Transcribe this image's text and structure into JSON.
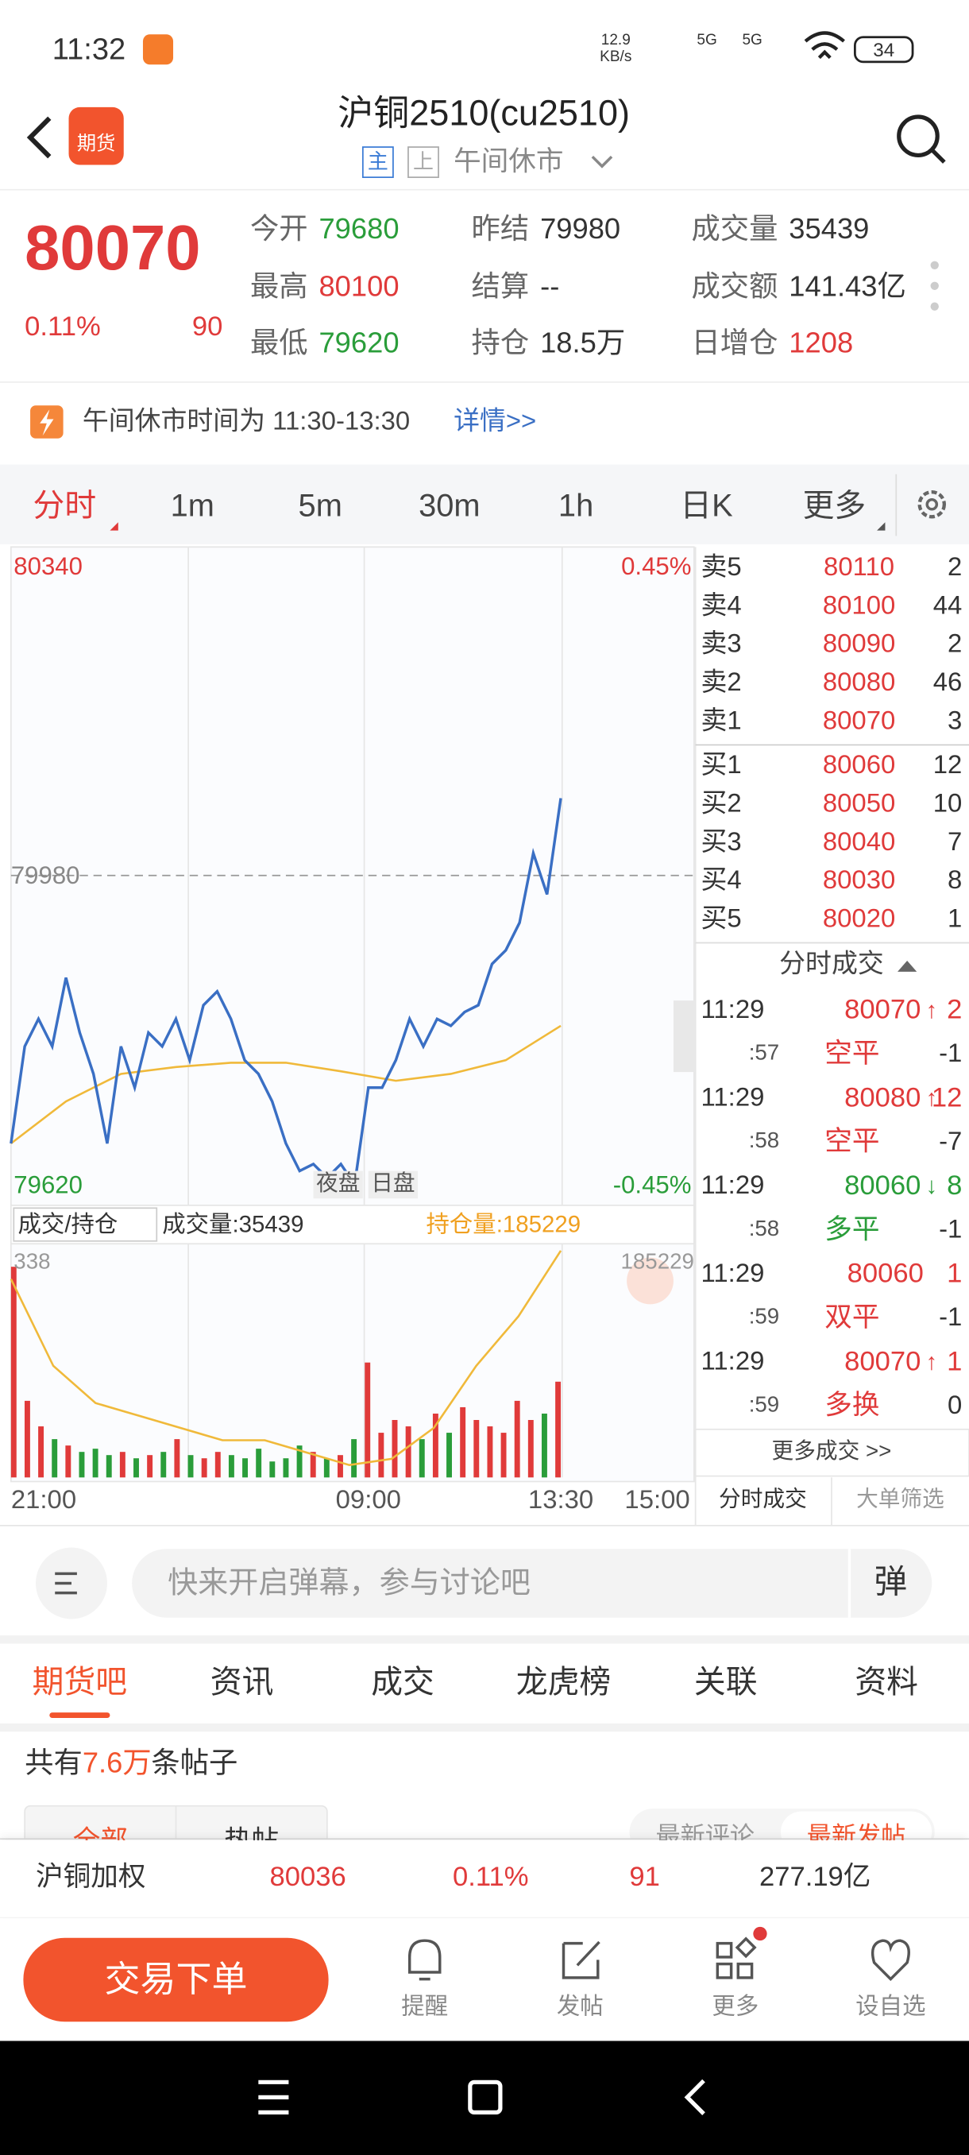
{
  "status_bar": {
    "time": "11:32",
    "net_speed": "12.9",
    "net_unit": "KB/s",
    "signal_1": "5G",
    "signal_2": "5G",
    "battery": "34"
  },
  "header": {
    "badge": "期货",
    "title": "沪铜2510(cu2510)",
    "tags": [
      "主",
      "上"
    ],
    "status": "午间休市"
  },
  "quote": {
    "price": "80070",
    "change_pct": "0.11%",
    "change": "90",
    "stats": [
      {
        "label": "今开",
        "value": "79680",
        "color": "#2a9d3a"
      },
      {
        "label": "昨结",
        "value": "79980",
        "color": "#333333"
      },
      {
        "label": "成交量",
        "value": "35439",
        "color": "#333333"
      },
      {
        "label": "最高",
        "value": "80100",
        "color": "#e03a3a"
      },
      {
        "label": "结算",
        "value": "--",
        "color": "#333333"
      },
      {
        "label": "成交额",
        "value": "141.43亿",
        "color": "#333333"
      },
      {
        "label": "最低",
        "value": "79620",
        "color": "#2a9d3a"
      },
      {
        "label": "持仓",
        "value": "18.5万",
        "color": "#333333"
      },
      {
        "label": "日增仓",
        "value": "1208",
        "color": "#e03a3a"
      }
    ]
  },
  "notice": {
    "text": "午间休市时间为 11:30-13:30",
    "link": "详情>>"
  },
  "period_tabs": {
    "items": [
      "分时",
      "1m",
      "5m",
      "30m",
      "1h",
      "日K",
      "更多"
    ],
    "active": 0
  },
  "chart": {
    "type": "line",
    "y_top": "80340",
    "y_mid": "79980",
    "y_bottom": "79620",
    "pct_top": "0.45%",
    "pct_bottom": "-0.45%",
    "session_labels": [
      "夜盘",
      "日盘"
    ],
    "price": {
      "color": "#3a6fc4",
      "values": [
        79668,
        79781,
        79813,
        79781,
        79861,
        79797,
        79749,
        79668,
        79781,
        79733,
        79797,
        79781,
        79813,
        79765,
        79829,
        79845,
        79813,
        79765,
        79749,
        79717,
        79668,
        79636,
        79644,
        79628,
        79644,
        79620,
        79733,
        79733,
        79765,
        79813,
        79781,
        79813,
        79805,
        79821,
        79829,
        79877,
        79893,
        79925,
        80006,
        79958,
        80070
      ]
    },
    "average": {
      "color": "#f0b93a",
      "values": [
        79668,
        79717,
        79749,
        79757,
        79762,
        79762,
        79752,
        79741,
        79749,
        79765,
        79805
      ]
    },
    "x_labels": [
      "21:00",
      "09:00",
      "13:30",
      "15:00"
    ],
    "volume_panel": {
      "selector": "成交/持仓",
      "volume": "成交量:35439",
      "open_interest": "持仓量:185229",
      "volume_max": "338",
      "oi_max": "185229",
      "volume_values": [
        330,
        120,
        80,
        60,
        50,
        40,
        45,
        35,
        40,
        30,
        35,
        40,
        60,
        35,
        30,
        40,
        35,
        30,
        45,
        25,
        30,
        50,
        40,
        30,
        35,
        60,
        180,
        70,
        90,
        80,
        60,
        100,
        70,
        110,
        90,
        80,
        70,
        120,
        90,
        100,
        150
      ],
      "oi_values": [
        185000,
        184300,
        184000,
        183900,
        183800,
        183700,
        183700,
        183600,
        183500,
        183550,
        183800,
        184300,
        184700,
        185229
      ],
      "oi_ylim": [
        183400,
        185229
      ],
      "oi_color": "#f0b93a"
    }
  },
  "order_book": {
    "asks": [
      {
        "label": "卖5",
        "price": "80110",
        "qty": "2"
      },
      {
        "label": "卖4",
        "price": "80100",
        "qty": "44"
      },
      {
        "label": "卖3",
        "price": "80090",
        "qty": "2"
      },
      {
        "label": "卖2",
        "price": "80080",
        "qty": "46"
      },
      {
        "label": "卖1",
        "price": "80070",
        "qty": "3"
      }
    ],
    "bids": [
      {
        "label": "买1",
        "price": "80060",
        "qty": "12"
      },
      {
        "label": "买2",
        "price": "80050",
        "qty": "10"
      },
      {
        "label": "买3",
        "price": "80040",
        "qty": "7"
      },
      {
        "label": "买4",
        "price": "80030",
        "qty": "8"
      },
      {
        "label": "买5",
        "price": "80020",
        "qty": "1"
      }
    ]
  },
  "trades": {
    "title": "分时成交",
    "rows": [
      {
        "time": "11:29",
        "second": ":57",
        "price": "80070",
        "arrow": "↑",
        "qty": "2",
        "kind": "空平",
        "oi_change": "-1",
        "color": "#e03a3a"
      },
      {
        "time": "11:29",
        "second": ":58",
        "price": "80080",
        "arrow": "↑",
        "qty": "12",
        "kind": "空平",
        "oi_change": "-7",
        "color": "#e03a3a"
      },
      {
        "time": "11:29",
        "second": ":58",
        "price": "80060",
        "arrow": "↓",
        "qty": "8",
        "kind": "多平",
        "oi_change": "-1",
        "color": "#2a9d3a"
      },
      {
        "time": "11:29",
        "second": ":59",
        "price": "80060",
        "qty": "1",
        "kind": "双平",
        "oi_change": "-1",
        "color": "#e03a3a"
      },
      {
        "time": "11:29",
        "second": ":59",
        "price": "80070",
        "arrow": "↑",
        "qty": "1",
        "kind": "多换",
        "oi_change": "0",
        "color": "#e03a3a"
      }
    ],
    "more": "更多成交 >>",
    "tabs": [
      "分时成交",
      "大单筛选"
    ]
  },
  "comment_bar": {
    "placeholder": "快来开启弹幕，参与讨论吧",
    "button": "弹"
  },
  "section_tabs": {
    "items": [
      "期货吧",
      "资讯",
      "成交",
      "龙虎榜",
      "关联",
      "资料"
    ],
    "active": 0
  },
  "posts": {
    "prefix": "共有",
    "count": "7.6万",
    "suffix": "条帖子",
    "filters": [
      "全部",
      "热帖"
    ],
    "sort": [
      "最新评论",
      "最新发帖"
    ]
  },
  "ticker": {
    "name": "沪铜加权",
    "price": "80036",
    "change_pct": "0.11%",
    "change": "91",
    "amount": "277.19亿"
  },
  "bottom_nav": {
    "trade_button": "交易下单",
    "items": [
      "提醒",
      "发帖",
      "更多",
      "设自选"
    ]
  }
}
